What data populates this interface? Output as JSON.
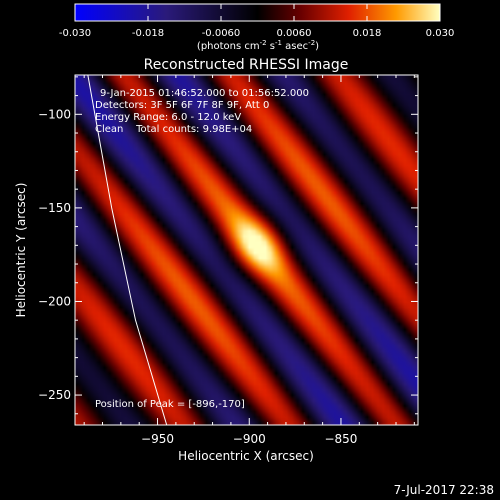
{
  "chart_data": {
    "type": "heatmap",
    "title": "Reconstructed RHESSI Image",
    "xlabel": "Heliocentric X (arcsec)",
    "ylabel": "Heliocentric Y (arcsec)",
    "xlim": [
      -995,
      -808
    ],
    "ylim": [
      -266,
      -79
    ],
    "xticks": [
      -950,
      -900,
      -850
    ],
    "yticks": [
      -100,
      -150,
      -200,
      -250
    ],
    "colorbar": {
      "range": [
        -0.03,
        0.03
      ],
      "ticks": [
        "-0.030",
        "-0.018",
        "-0.0060",
        "0.0060",
        "0.018",
        "0.030"
      ],
      "label": "(photons cm",
      "label_exp1": "-2",
      "label_mid": " s",
      "label_exp2": "-1",
      "label_mid2": " asec",
      "label_exp3": "-2",
      "label_end": ")"
    },
    "annotations": {
      "time_range": "9-Jan-2015 01:46:52.000 to 01:56:52.000",
      "detectors": "Detectors: 3F 5F 6F 7F 8F 9F, Att 0",
      "energy": "Energy Range: 6.0 - 12.0 keV",
      "clean": "Clean    Total counts: 9.98E+04",
      "peak": "Position of Peak = [-896,-170]"
    },
    "peak": {
      "x": -896,
      "y": -170,
      "value": 0.03
    },
    "limb_curve": [
      [
        -988,
        -79
      ],
      [
        -975,
        -150
      ],
      [
        -962,
        -210
      ],
      [
        -945,
        -266
      ]
    ],
    "timestamp": "7-Jul-2017 22:38"
  }
}
